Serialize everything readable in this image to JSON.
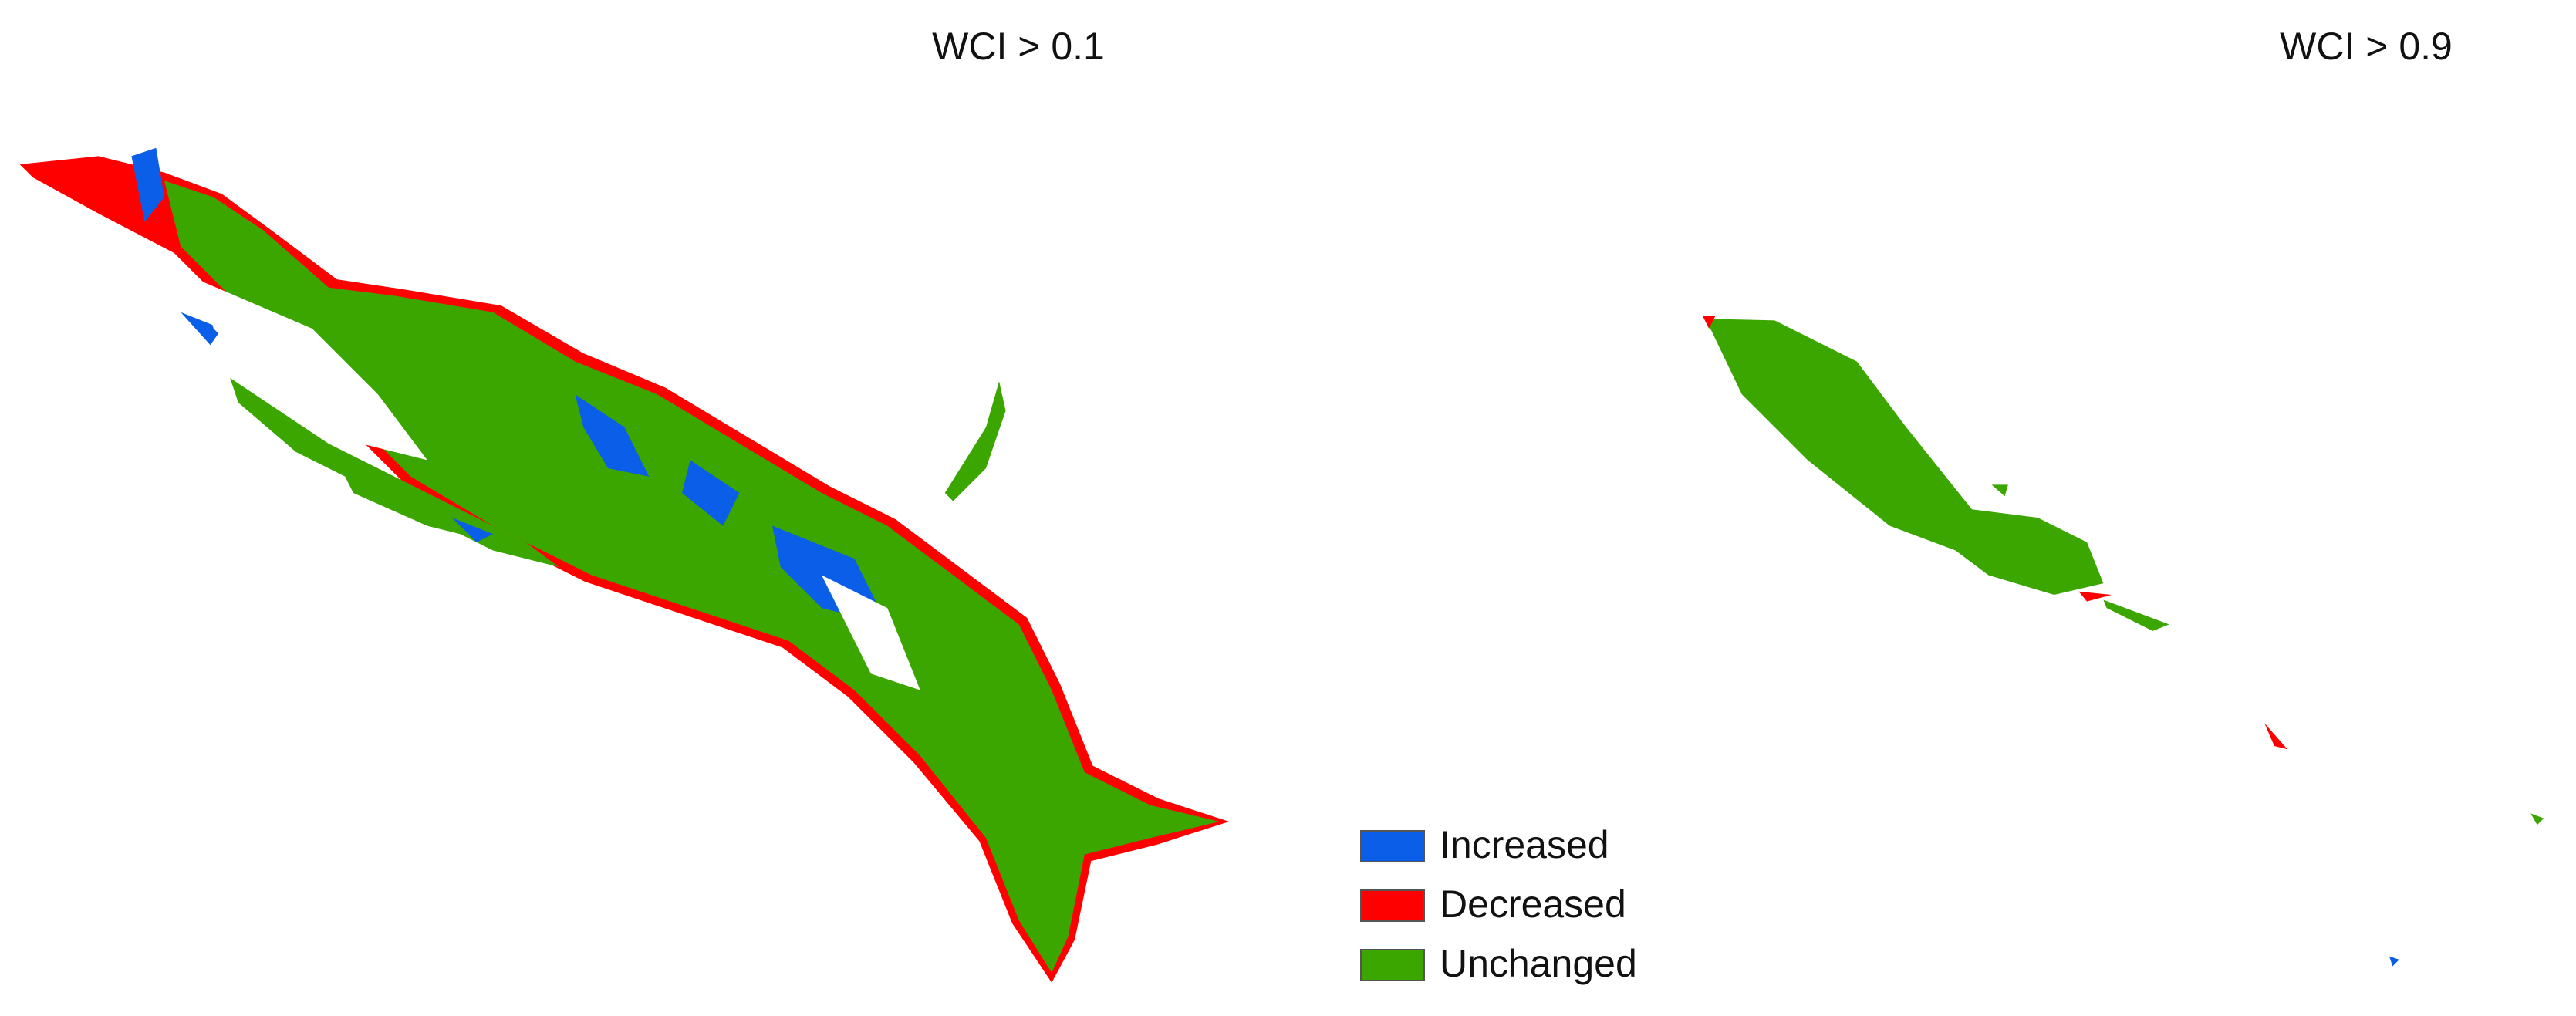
{
  "panels": [
    {
      "title": "WCI > 0.1"
    },
    {
      "title": "WCI > 0.9"
    }
  ],
  "legend": [
    {
      "label": "Increased",
      "color": "#0a5ee8"
    },
    {
      "label": "Decreased",
      "color": "#ff0000"
    },
    {
      "label": "Unchanged",
      "color": "#3ca600"
    }
  ]
}
